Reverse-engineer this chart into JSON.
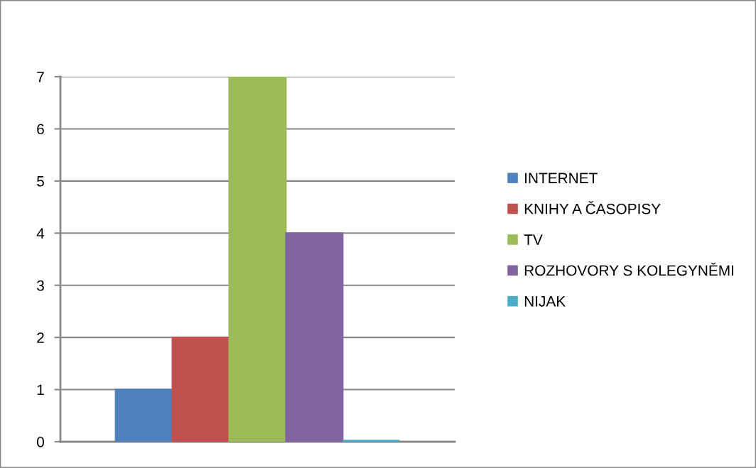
{
  "chart_data": {
    "type": "bar",
    "categories": [
      null
    ],
    "series": [
      {
        "name": "INTERNET",
        "color": "#4f81bd",
        "values": [
          1
        ]
      },
      {
        "name": "KNIHY A ČASOPISY",
        "color": "#c0504d",
        "values": [
          2
        ]
      },
      {
        "name": "TV",
        "color": "#9bbb59",
        "values": [
          7
        ]
      },
      {
        "name": "ROZHOVORY S KOLEGYNĚMI",
        "color": "#8064a2",
        "values": [
          4
        ]
      },
      {
        "name": "NIJAK",
        "color": "#4bacc6",
        "values": [
          0
        ]
      }
    ],
    "ylim": [
      0,
      7
    ],
    "yticks": [
      0,
      1,
      2,
      3,
      4,
      5,
      6,
      7
    ],
    "grid": "y",
    "legend": "right"
  }
}
